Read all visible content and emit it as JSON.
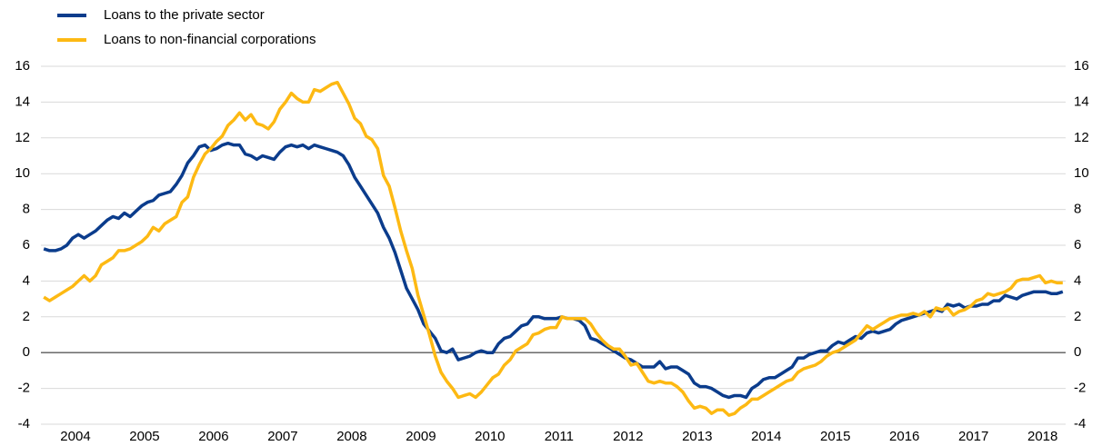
{
  "chart_data": {
    "type": "line",
    "categories": [
      null,
      null,
      null,
      null,
      null,
      null,
      "2004",
      null,
      null,
      null,
      null,
      null,
      null,
      null,
      null,
      null,
      null,
      null,
      "2005",
      null,
      null,
      null,
      null,
      null,
      null,
      null,
      null,
      null,
      null,
      null,
      "2006",
      null,
      null,
      null,
      null,
      null,
      null,
      null,
      null,
      null,
      null,
      null,
      "2007",
      null,
      null,
      null,
      null,
      null,
      null,
      null,
      null,
      null,
      null,
      null,
      "2008",
      null,
      null,
      null,
      null,
      null,
      null,
      null,
      null,
      null,
      null,
      null,
      "2009",
      null,
      null,
      null,
      null,
      null,
      null,
      null,
      null,
      null,
      null,
      null,
      "2010",
      null,
      null,
      null,
      null,
      null,
      null,
      null,
      null,
      null,
      null,
      null,
      "2011",
      null,
      null,
      null,
      null,
      null,
      null,
      null,
      null,
      null,
      null,
      null,
      "2012",
      null,
      null,
      null,
      null,
      null,
      null,
      null,
      null,
      null,
      null,
      null,
      "2013",
      null,
      null,
      null,
      null,
      null,
      null,
      null,
      null,
      null,
      null,
      null,
      "2014",
      null,
      null,
      null,
      null,
      null,
      null,
      null,
      null,
      null,
      null,
      null,
      "2015",
      null,
      null,
      null,
      null,
      null,
      null,
      null,
      null,
      null,
      null,
      null,
      "2016",
      null,
      null,
      null,
      null,
      null,
      null,
      null,
      null,
      null,
      null,
      null,
      "2017",
      null,
      null,
      null,
      null,
      null,
      null,
      null,
      null,
      null,
      null,
      null,
      "2018",
      null,
      null,
      null
    ],
    "series": [
      {
        "name": "Loans to the private sector",
        "color": "#0b3c8c",
        "values": [
          5.8,
          5.7,
          5.7,
          5.8,
          6.0,
          6.4,
          6.6,
          6.4,
          6.6,
          6.8,
          7.1,
          7.4,
          7.6,
          7.5,
          7.8,
          7.6,
          7.9,
          8.2,
          8.4,
          8.5,
          8.8,
          8.9,
          9.0,
          9.4,
          9.9,
          10.6,
          11.0,
          11.5,
          11.6,
          11.3,
          11.4,
          11.6,
          11.7,
          11.6,
          11.6,
          11.1,
          11.0,
          10.8,
          11.0,
          10.9,
          10.8,
          11.2,
          11.5,
          11.6,
          11.5,
          11.6,
          11.4,
          11.6,
          11.5,
          11.4,
          11.3,
          11.2,
          11.0,
          10.5,
          9.8,
          9.3,
          8.8,
          8.3,
          7.8,
          7.0,
          6.4,
          5.6,
          4.6,
          3.6,
          3.0,
          2.4,
          1.6,
          1.2,
          0.8,
          0.1,
          0.0,
          0.2,
          -0.4,
          -0.3,
          -0.2,
          0.0,
          0.1,
          0.0,
          0.0,
          0.5,
          0.8,
          0.9,
          1.2,
          1.5,
          1.6,
          2.0,
          2.0,
          1.9,
          1.9,
          1.9,
          2.0,
          1.9,
          1.9,
          1.8,
          1.5,
          0.8,
          0.7,
          0.5,
          0.3,
          0.1,
          -0.1,
          -0.3,
          -0.4,
          -0.6,
          -0.8,
          -0.8,
          -0.8,
          -0.5,
          -0.9,
          -0.8,
          -0.8,
          -1.0,
          -1.2,
          -1.7,
          -1.9,
          -1.9,
          -2.0,
          -2.2,
          -2.4,
          -2.5,
          -2.4,
          -2.4,
          -2.5,
          -2.0,
          -1.8,
          -1.5,
          -1.4,
          -1.4,
          -1.2,
          -1.0,
          -0.8,
          -0.3,
          -0.3,
          -0.1,
          0.0,
          0.1,
          0.1,
          0.4,
          0.6,
          0.5,
          0.7,
          0.9,
          0.8,
          1.1,
          1.2,
          1.1,
          1.2,
          1.3,
          1.6,
          1.8,
          1.9,
          2.0,
          2.1,
          2.2,
          2.3,
          2.4,
          2.3,
          2.7,
          2.6,
          2.7,
          2.5,
          2.6,
          2.6,
          2.7,
          2.7,
          2.9,
          2.9,
          3.2,
          3.1,
          3.0,
          3.2,
          3.3,
          3.4,
          3.4,
          3.4,
          3.3,
          3.3,
          3.4
        ]
      },
      {
        "name": "Loans to non-financial corporations",
        "color": "#fdb913",
        "values": [
          3.1,
          2.9,
          3.1,
          3.3,
          3.5,
          3.7,
          4.0,
          4.3,
          4.0,
          4.3,
          4.9,
          5.1,
          5.3,
          5.7,
          5.7,
          5.8,
          6.0,
          6.2,
          6.5,
          7.0,
          6.8,
          7.2,
          7.4,
          7.6,
          8.4,
          8.7,
          9.8,
          10.5,
          11.1,
          11.4,
          11.8,
          12.1,
          12.7,
          13.0,
          13.4,
          13.0,
          13.3,
          12.8,
          12.7,
          12.5,
          12.9,
          13.6,
          14.0,
          14.5,
          14.2,
          14.0,
          14.0,
          14.7,
          14.6,
          14.8,
          15.0,
          15.1,
          14.5,
          13.9,
          13.1,
          12.8,
          12.1,
          11.9,
          11.4,
          9.9,
          9.3,
          8.1,
          6.8,
          5.7,
          4.7,
          3.2,
          2.1,
          1.0,
          -0.2,
          -1.1,
          -1.6,
          -2.0,
          -2.5,
          -2.4,
          -2.3,
          -2.5,
          -2.2,
          -1.8,
          -1.4,
          -1.2,
          -0.7,
          -0.4,
          0.1,
          0.3,
          0.5,
          1.0,
          1.1,
          1.3,
          1.4,
          1.4,
          2.0,
          1.9,
          1.9,
          1.9,
          1.9,
          1.6,
          1.1,
          0.7,
          0.4,
          0.2,
          0.2,
          -0.2,
          -0.7,
          -0.6,
          -1.1,
          -1.6,
          -1.7,
          -1.6,
          -1.7,
          -1.7,
          -1.9,
          -2.2,
          -2.7,
          -3.1,
          -3.0,
          -3.1,
          -3.4,
          -3.2,
          -3.2,
          -3.5,
          -3.4,
          -3.1,
          -2.9,
          -2.6,
          -2.6,
          -2.4,
          -2.2,
          -2.0,
          -1.8,
          -1.6,
          -1.5,
          -1.1,
          -0.9,
          -0.8,
          -0.7,
          -0.5,
          -0.2,
          0.0,
          0.1,
          0.3,
          0.5,
          0.7,
          1.1,
          1.5,
          1.3,
          1.5,
          1.7,
          1.9,
          2.0,
          2.1,
          2.1,
          2.2,
          2.1,
          2.3,
          2.0,
          2.5,
          2.4,
          2.5,
          2.1,
          2.3,
          2.4,
          2.6,
          2.9,
          3.0,
          3.3,
          3.2,
          3.3,
          3.4,
          3.6,
          4.0,
          4.1,
          4.1,
          4.2,
          4.3,
          3.9,
          4.0,
          3.9,
          3.9
        ]
      }
    ],
    "ylim": [
      -4,
      16
    ],
    "yticks": [
      -4,
      -2,
      0,
      2,
      4,
      6,
      8,
      10,
      12,
      14,
      16
    ],
    "y2lim": [
      -4,
      16
    ],
    "y2ticks": [
      -4,
      -2,
      0,
      2,
      4,
      6,
      8,
      10,
      12,
      14,
      16
    ],
    "grid": true,
    "legend": "top-left"
  }
}
